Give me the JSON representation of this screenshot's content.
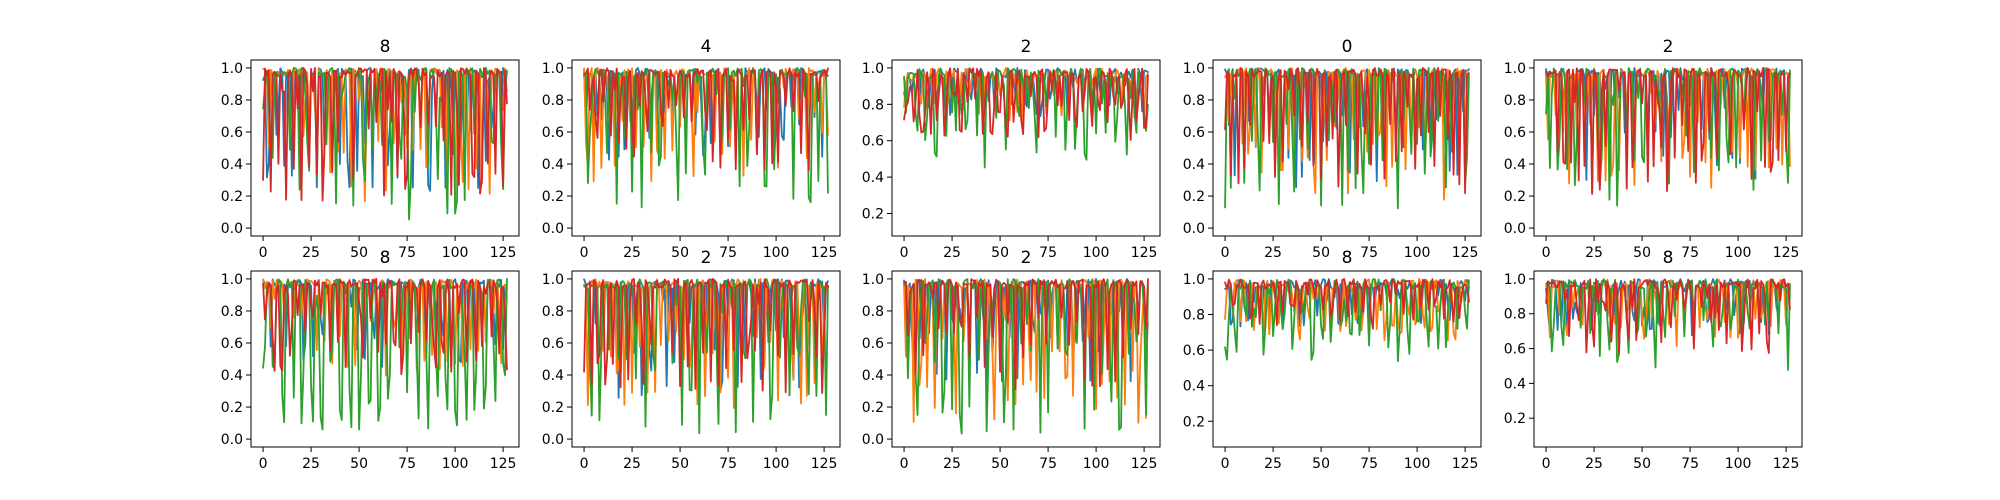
{
  "colors": [
    "#1f77b4",
    "#ff7f0e",
    "#2ca02c",
    "#d62728"
  ],
  "chart_data": [
    {
      "type": "line",
      "title": "8",
      "xlim": [
        0,
        127
      ],
      "ylim": [
        0,
        1
      ],
      "xticks": [
        "0",
        "25",
        "50",
        "75",
        "100",
        "125"
      ],
      "yticks": [
        "0.0",
        "0.2",
        "0.4",
        "0.6",
        "0.8",
        "1.0"
      ],
      "series": [
        {
          "base": 0.82,
          "amp": 0.75,
          "period": 4.2,
          "seed": 11
        },
        {
          "base": 0.8,
          "amp": 0.8,
          "period": 3.6,
          "seed": 12
        },
        {
          "base": 0.75,
          "amp": 0.85,
          "period": 4.8,
          "seed": 13
        },
        {
          "base": 0.82,
          "amp": 0.8,
          "period": 3.9,
          "seed": 14
        }
      ]
    },
    {
      "type": "line",
      "title": "4",
      "xlim": [
        0,
        127
      ],
      "ylim": [
        0,
        1
      ],
      "xticks": [
        "0",
        "25",
        "50",
        "75",
        "100",
        "125"
      ],
      "yticks": [
        "0.0",
        "0.2",
        "0.4",
        "0.6",
        "0.8",
        "1.0"
      ],
      "series": [
        {
          "base": 0.85,
          "amp": 0.6,
          "period": 4.1,
          "seed": 21
        },
        {
          "base": 0.84,
          "amp": 0.7,
          "period": 3.7,
          "seed": 22
        },
        {
          "base": 0.8,
          "amp": 0.85,
          "period": 4.6,
          "seed": 23
        },
        {
          "base": 0.86,
          "amp": 0.65,
          "period": 3.8,
          "seed": 24
        }
      ]
    },
    {
      "type": "line",
      "title": "2",
      "xlim": [
        0,
        127
      ],
      "ylim": [
        0.12,
        1
      ],
      "xticks": [
        "0",
        "25",
        "50",
        "75",
        "100",
        "125"
      ],
      "yticks": [
        "0.2",
        "0.4",
        "0.6",
        "0.8",
        "1.0"
      ],
      "series": [
        {
          "base": 0.9,
          "amp": 0.3,
          "period": 4.3,
          "seed": 31
        },
        {
          "base": 0.9,
          "amp": 0.35,
          "period": 3.9,
          "seed": 32
        },
        {
          "base": 0.85,
          "amp": 0.55,
          "period": 5.2,
          "seed": 33
        },
        {
          "base": 0.9,
          "amp": 0.45,
          "period": 4.0,
          "seed": 34
        }
      ]
    },
    {
      "type": "line",
      "title": "0",
      "xlim": [
        0,
        127
      ],
      "ylim": [
        0,
        1
      ],
      "xticks": [
        "0",
        "25",
        "50",
        "75",
        "100",
        "125"
      ],
      "yticks": [
        "0.0",
        "0.2",
        "0.4",
        "0.6",
        "0.8",
        "1.0"
      ],
      "series": [
        {
          "base": 0.85,
          "amp": 0.75,
          "period": 3.5,
          "seed": 41
        },
        {
          "base": 0.82,
          "amp": 0.8,
          "period": 3.4,
          "seed": 42
        },
        {
          "base": 0.82,
          "amp": 0.85,
          "period": 3.6,
          "seed": 43
        },
        {
          "base": 0.85,
          "amp": 0.8,
          "period": 3.3,
          "seed": 44
        }
      ]
    },
    {
      "type": "line",
      "title": "2",
      "xlim": [
        0,
        127
      ],
      "ylim": [
        0,
        1
      ],
      "xticks": [
        "0",
        "25",
        "50",
        "75",
        "100",
        "125"
      ],
      "yticks": [
        "0.0",
        "0.2",
        "0.4",
        "0.6",
        "0.8",
        "1.0"
      ],
      "series": [
        {
          "base": 0.85,
          "amp": 0.7,
          "period": 4.0,
          "seed": 51
        },
        {
          "base": 0.84,
          "amp": 0.75,
          "period": 3.7,
          "seed": 52
        },
        {
          "base": 0.82,
          "amp": 0.85,
          "period": 4.4,
          "seed": 53
        },
        {
          "base": 0.86,
          "amp": 0.8,
          "period": 3.6,
          "seed": 54
        }
      ]
    },
    {
      "type": "line",
      "title": "8",
      "xlim": [
        0,
        127
      ],
      "ylim": [
        0,
        1
      ],
      "xticks": [
        "0",
        "25",
        "50",
        "75",
        "100",
        "125"
      ],
      "yticks": [
        "0.0",
        "0.2",
        "0.4",
        "0.6",
        "0.8",
        "1.0"
      ],
      "series": [
        {
          "base": 0.85,
          "amp": 0.55,
          "period": 4.5,
          "seed": 61
        },
        {
          "base": 0.84,
          "amp": 0.6,
          "period": 4.0,
          "seed": 62
        },
        {
          "base": 0.75,
          "amp": 0.85,
          "period": 5.0,
          "seed": 63
        },
        {
          "base": 0.85,
          "amp": 0.6,
          "period": 4.2,
          "seed": 64
        }
      ]
    },
    {
      "type": "line",
      "title": "2",
      "xlim": [
        0,
        127
      ],
      "ylim": [
        0,
        1
      ],
      "xticks": [
        "0",
        "25",
        "50",
        "75",
        "100",
        "125"
      ],
      "yticks": [
        "0.0",
        "0.2",
        "0.4",
        "0.6",
        "0.8",
        "1.0"
      ],
      "series": [
        {
          "base": 0.85,
          "amp": 0.75,
          "period": 4.1,
          "seed": 71
        },
        {
          "base": 0.82,
          "amp": 0.8,
          "period": 3.8,
          "seed": 72
        },
        {
          "base": 0.78,
          "amp": 0.9,
          "period": 4.7,
          "seed": 73
        },
        {
          "base": 0.85,
          "amp": 0.75,
          "period": 3.9,
          "seed": 74
        }
      ]
    },
    {
      "type": "line",
      "title": "2",
      "xlim": [
        0,
        127
      ],
      "ylim": [
        0,
        1
      ],
      "xticks": [
        "0",
        "25",
        "50",
        "75",
        "100",
        "125"
      ],
      "yticks": [
        "0.0",
        "0.2",
        "0.4",
        "0.6",
        "0.8",
        "1.0"
      ],
      "series": [
        {
          "base": 0.86,
          "amp": 0.65,
          "period": 4.2,
          "seed": 81
        },
        {
          "base": 0.8,
          "amp": 0.85,
          "period": 3.8,
          "seed": 82
        },
        {
          "base": 0.78,
          "amp": 0.9,
          "period": 4.6,
          "seed": 83
        },
        {
          "base": 0.86,
          "amp": 0.7,
          "period": 4.0,
          "seed": 84
        }
      ]
    },
    {
      "type": "line",
      "title": "8",
      "xlim": [
        0,
        127
      ],
      "ylim": [
        0.1,
        1
      ],
      "xticks": [
        "0",
        "25",
        "50",
        "75",
        "100",
        "125"
      ],
      "yticks": [
        "0.2",
        "0.4",
        "0.6",
        "0.8",
        "1.0"
      ],
      "series": [
        {
          "base": 0.92,
          "amp": 0.35,
          "period": 4.5,
          "seed": 91
        },
        {
          "base": 0.9,
          "amp": 0.4,
          "period": 4.0,
          "seed": 92
        },
        {
          "base": 0.88,
          "amp": 0.5,
          "period": 5.0,
          "seed": 93
        },
        {
          "base": 0.92,
          "amp": 0.35,
          "period": 4.2,
          "seed": 94
        }
      ]
    },
    {
      "type": "line",
      "title": "8",
      "xlim": [
        0,
        127
      ],
      "ylim": [
        0.08,
        1
      ],
      "xticks": [
        "0",
        "25",
        "50",
        "75",
        "100",
        "125"
      ],
      "yticks": [
        "0.2",
        "0.4",
        "0.6",
        "0.8",
        "1.0"
      ],
      "series": [
        {
          "base": 0.92,
          "amp": 0.4,
          "period": 4.4,
          "seed": 101
        },
        {
          "base": 0.9,
          "amp": 0.45,
          "period": 4.1,
          "seed": 102
        },
        {
          "base": 0.87,
          "amp": 0.55,
          "period": 4.9,
          "seed": 103
        },
        {
          "base": 0.92,
          "amp": 0.5,
          "period": 4.3,
          "seed": 104
        }
      ]
    }
  ]
}
